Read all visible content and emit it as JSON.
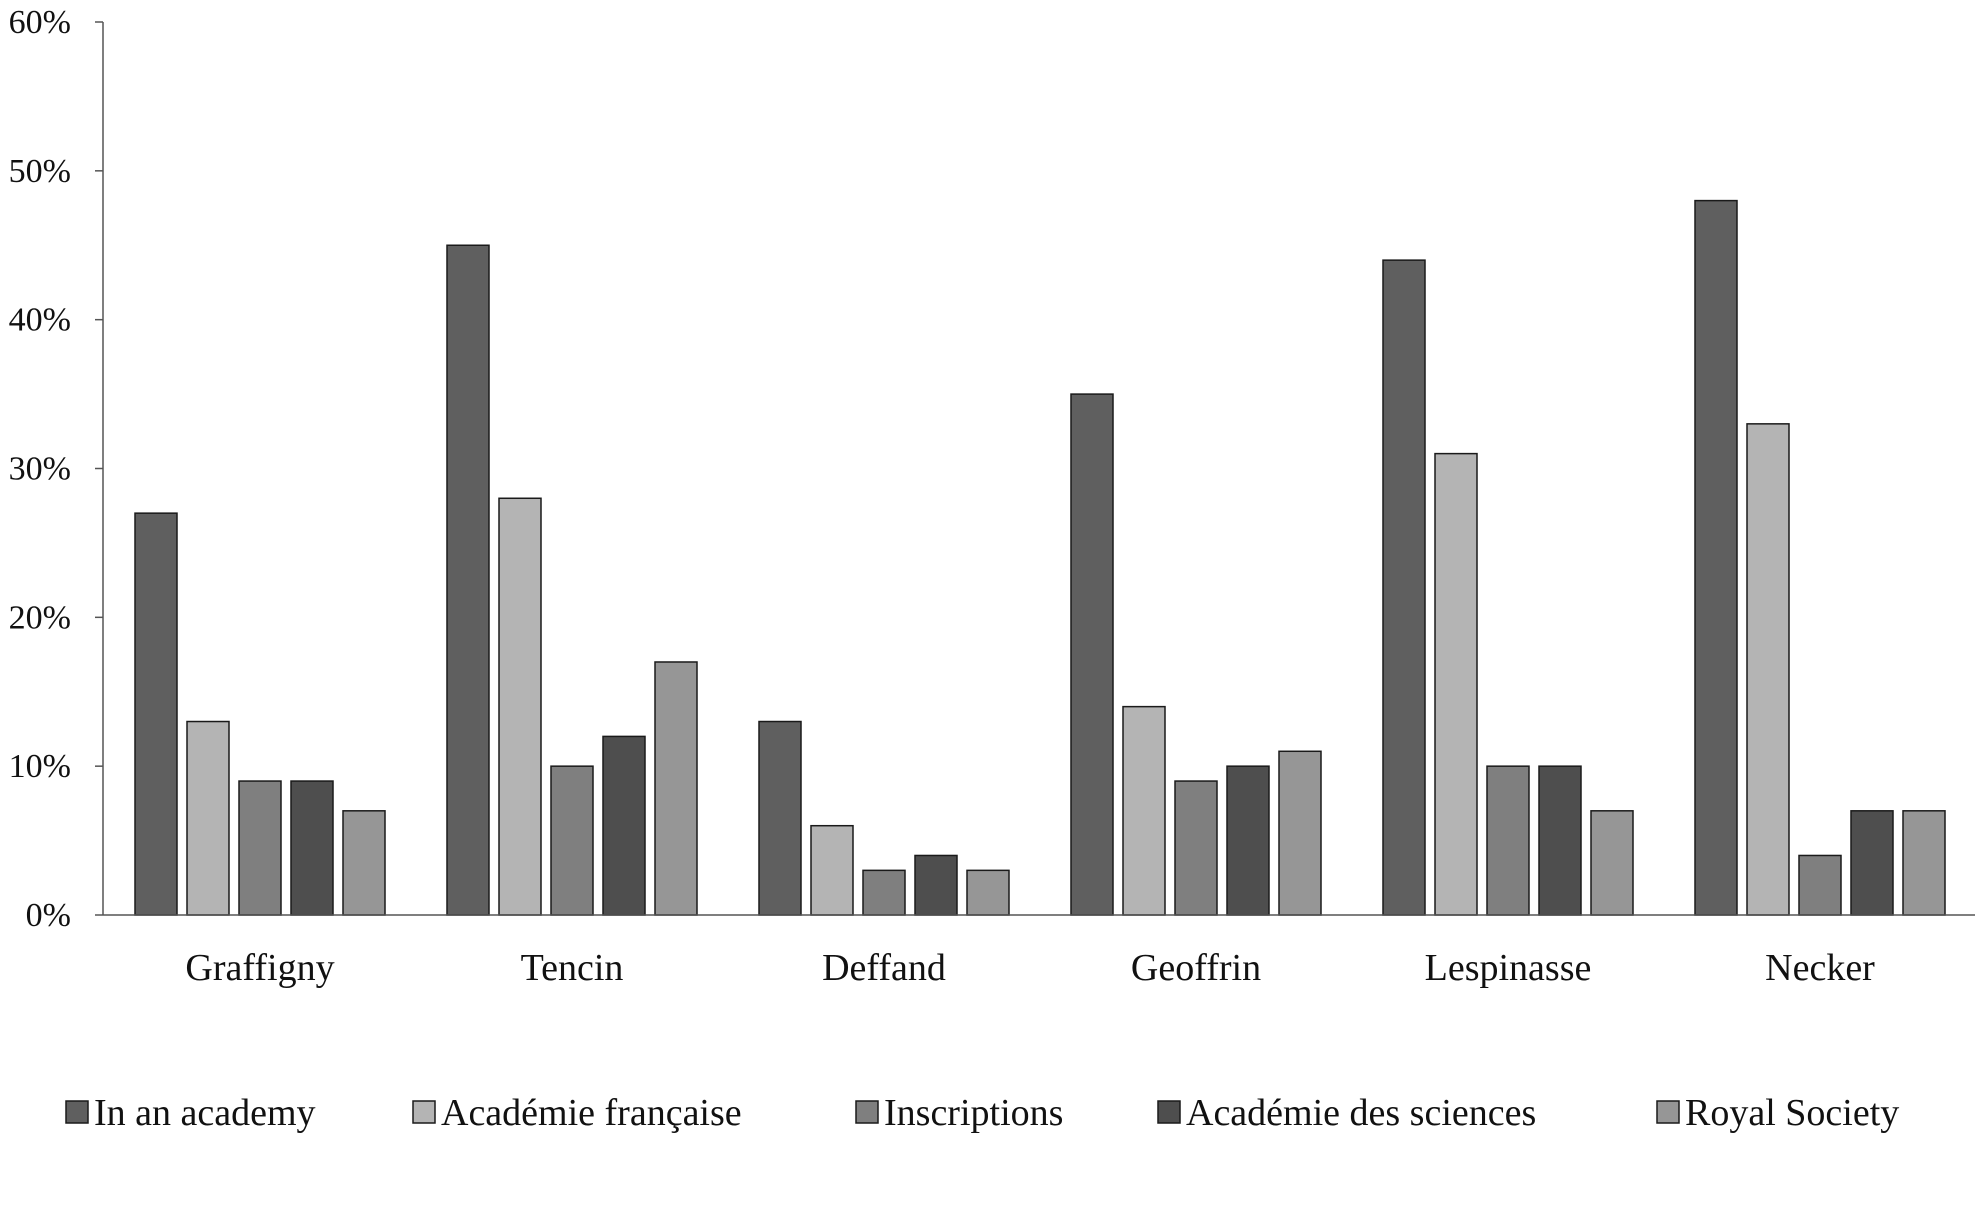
{
  "chart_data": {
    "type": "bar",
    "title": "",
    "xlabel": "",
    "ylabel": "",
    "ylim": [
      0,
      60
    ],
    "yticks": [
      0,
      10,
      20,
      30,
      40,
      50,
      60
    ],
    "ytick_labels": [
      "0%",
      "10%",
      "20%",
      "30%",
      "40%",
      "50%",
      "60%"
    ],
    "grid": false,
    "legend_position": "bottom",
    "categories": [
      "Graffigny",
      "Tencin",
      "Deffand",
      "Geoffrin",
      "Lespinasse",
      "Necker"
    ],
    "series": [
      {
        "name": "In an academy",
        "color": "#5f5f5f",
        "values": [
          27,
          45,
          13,
          35,
          44,
          48
        ]
      },
      {
        "name": "Académie française",
        "color": "#b4b4b4",
        "values": [
          13,
          28,
          6,
          14,
          31,
          33
        ]
      },
      {
        "name": "Inscriptions",
        "color": "#7f7f7f",
        "values": [
          9,
          10,
          3,
          9,
          10,
          4
        ]
      },
      {
        "name": "Académie des sciences",
        "color": "#4e4e4e",
        "values": [
          9,
          12,
          4,
          10,
          10,
          7
        ]
      },
      {
        "name": "Royal Society",
        "color": "#969696",
        "values": [
          7,
          17,
          3,
          11,
          7,
          7
        ]
      }
    ]
  }
}
